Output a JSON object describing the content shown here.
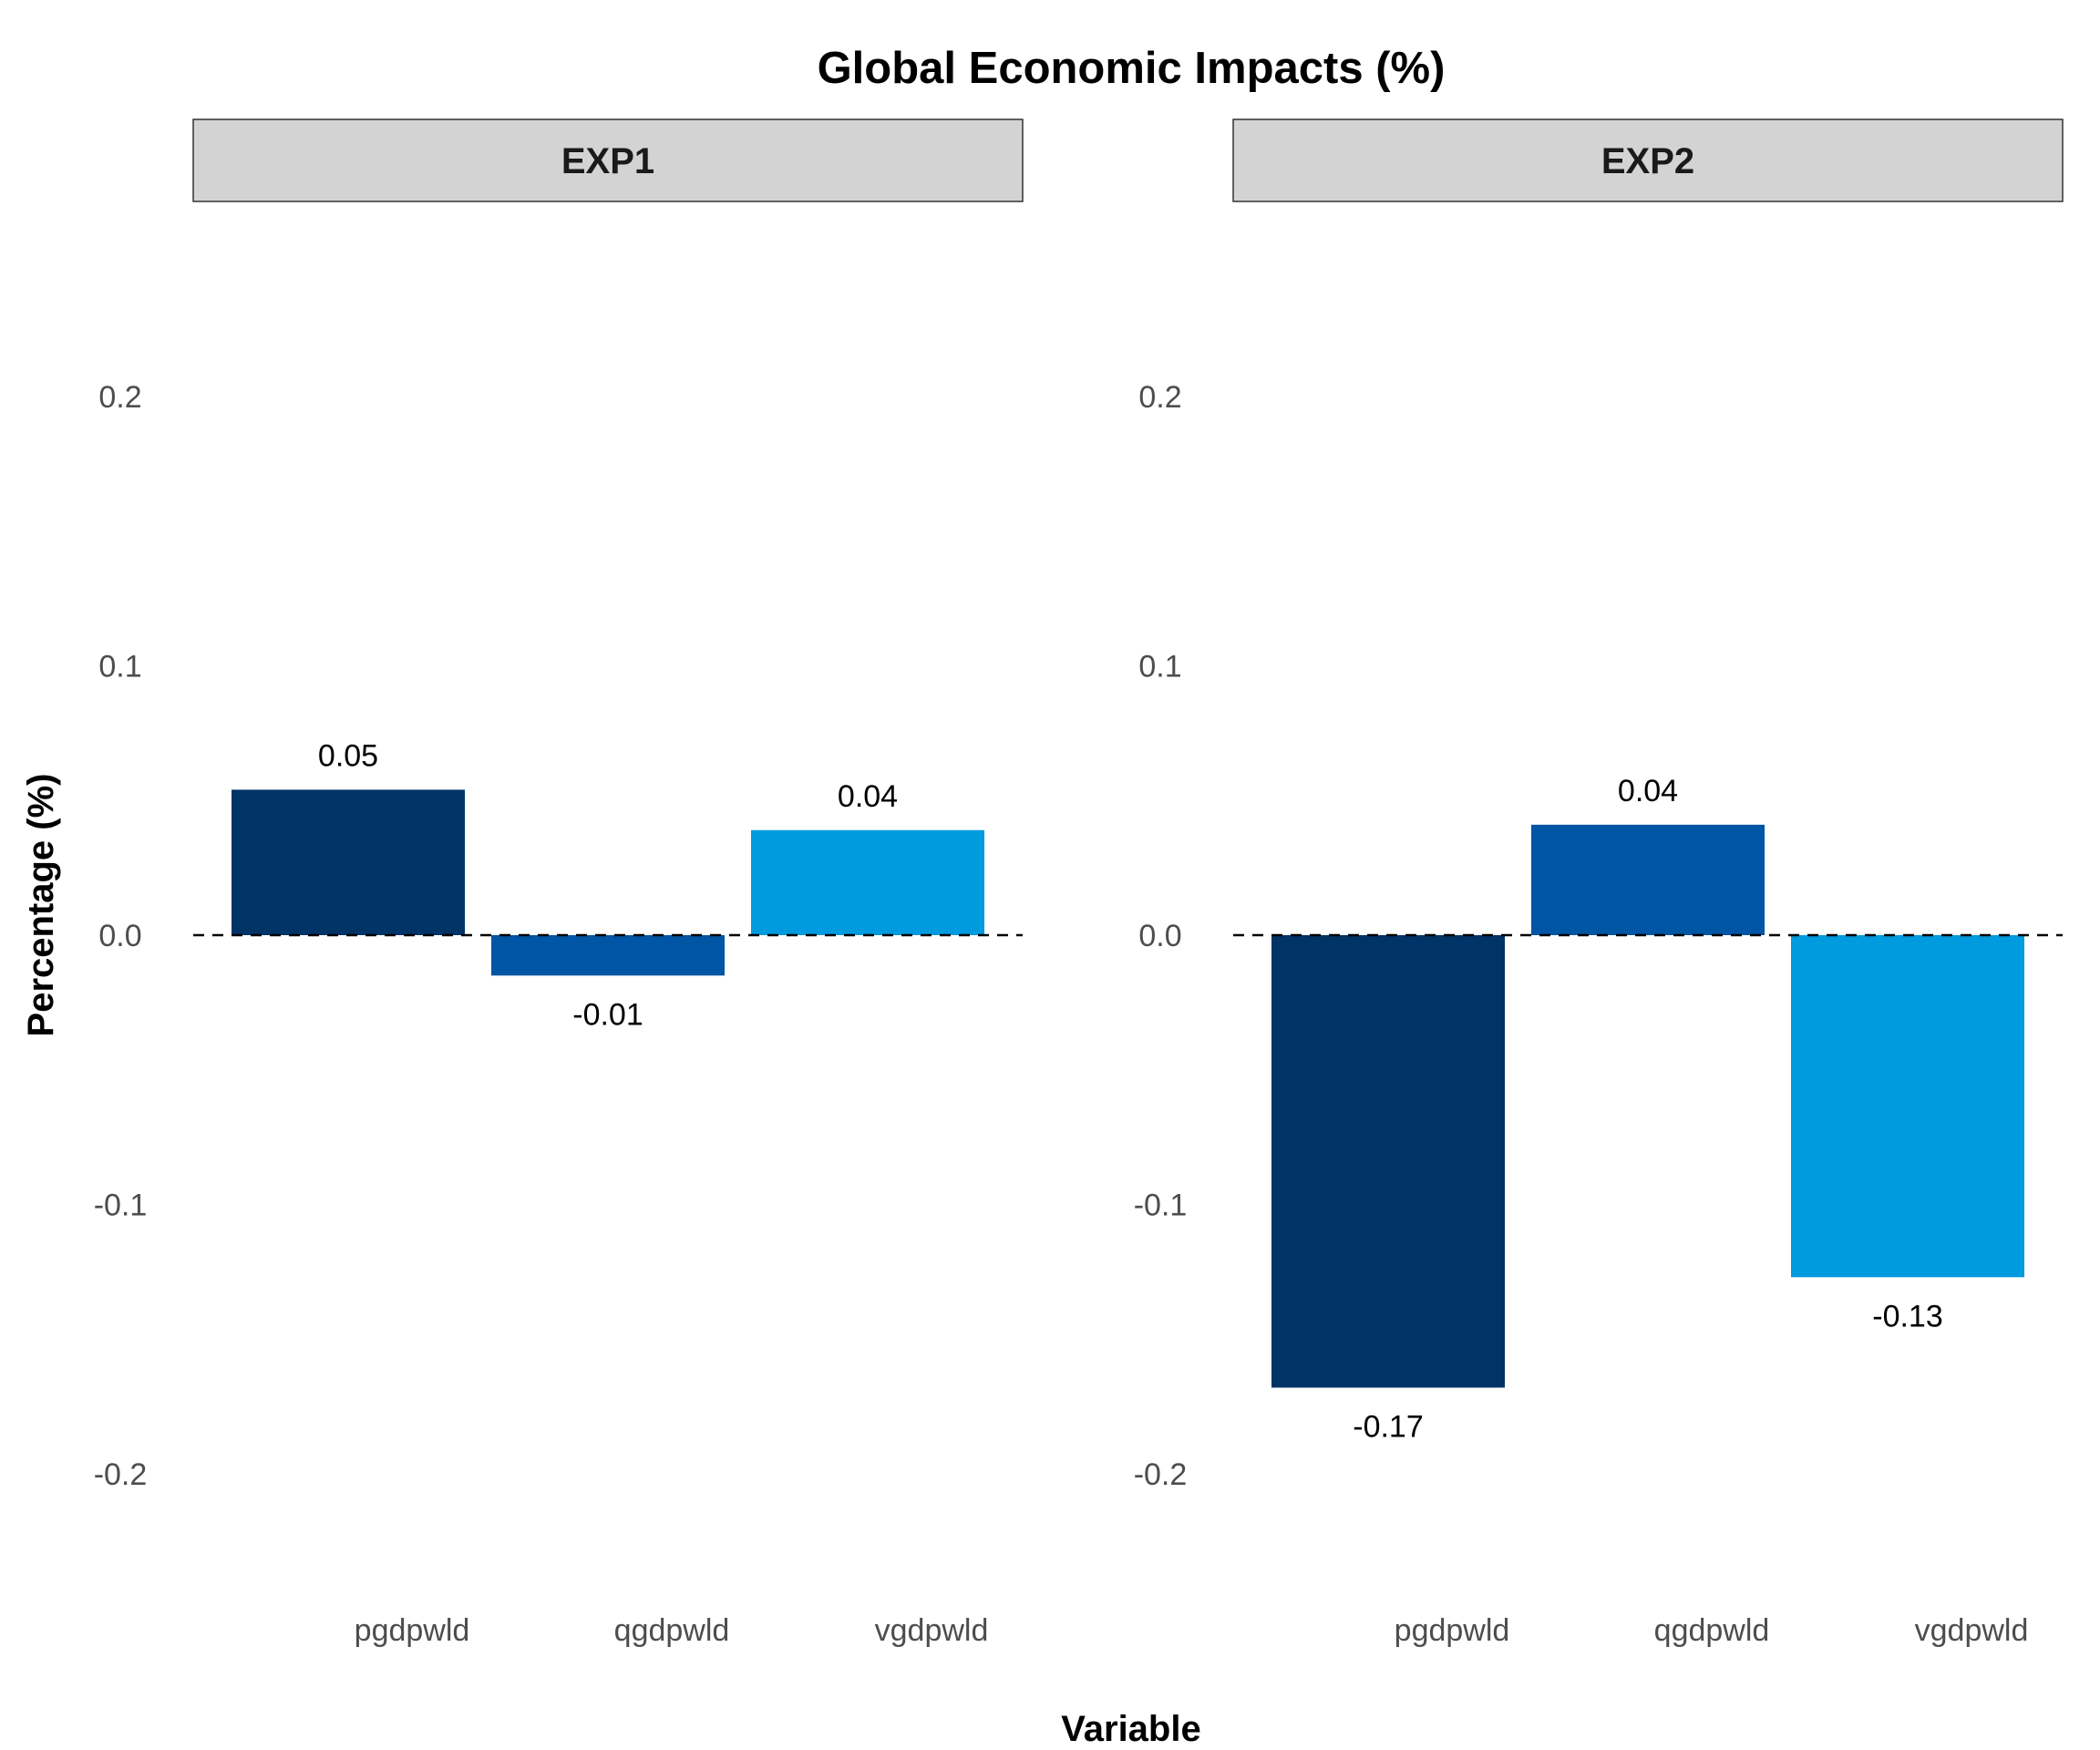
{
  "chart_data": {
    "type": "bar",
    "title": "Global Economic Impacts (%)",
    "xlabel": "Variable",
    "ylabel": "Percentage (%)",
    "ylim": [
      -0.25,
      0.25
    ],
    "yticks": [
      "-0.2",
      "-0.1",
      "0.0",
      "0.1",
      "0.2"
    ],
    "ytick_values": [
      -0.2,
      -0.1,
      0.0,
      0.1,
      0.2
    ],
    "grid": false,
    "reference_line": {
      "y": 0,
      "style": "dashed",
      "color": "#000000"
    },
    "categories": [
      "pgdpwld",
      "qgdpwld",
      "vgdpwld"
    ],
    "category_colors": [
      "#003366",
      "#0055A4",
      "#009ADE"
    ],
    "facets": [
      {
        "label": "EXP1",
        "values": [
          0.054,
          -0.015,
          0.039
        ],
        "labels": [
          "0.05",
          "-0.01",
          "0.04"
        ]
      },
      {
        "label": "EXP2",
        "values": [
          -0.168,
          0.041,
          -0.127
        ],
        "labels": [
          "-0.17",
          "0.04",
          "-0.13"
        ]
      }
    ]
  },
  "colors": {
    "strip_fill": "#D3D3D3",
    "strip_border": "#333333"
  }
}
